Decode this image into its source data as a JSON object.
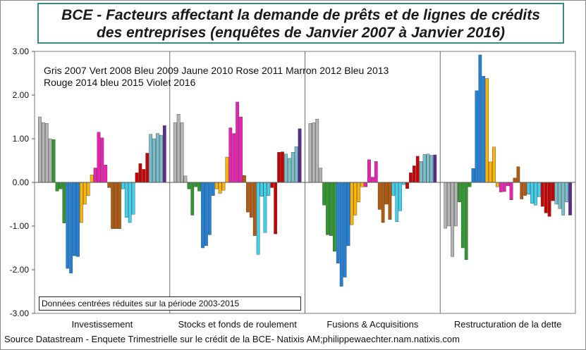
{
  "chart_data": {
    "type": "bar",
    "title_line1": "BCE - Facteurs affectant la demande de prêts et de lignes de crédits",
    "title_line2": "des entreprises (enquêtes de Janvier 2007 à Janvier 2016)",
    "legend_line1": "Gris 2007 Vert 2008 Bleu 2009 Jaune 2010 Rose 2011 Marron 2012 Bleu 2013",
    "legend_line2": "Rouge 2014 bleu 2015 Violet 2016",
    "note": "Données centrées réduites sur la période 2003-2015",
    "source": "Source Datastream - Enquete Trimestrielle sur le crédit de la BCE- Natixis AM;philippewaechter.nam.natixis.com",
    "ylim": [
      -3.0,
      3.0
    ],
    "yticks": [
      "3.00",
      "2.00",
      "1.00",
      "0.00",
      "-1.00",
      "-2.00",
      "-3.00"
    ],
    "ytick_values": [
      3,
      2,
      1,
      0,
      -1,
      -2,
      -3
    ],
    "categories": [
      "Investissement",
      "Stocks et fonds de roulement",
      "Fusions & Acquisitions",
      "Restructuration de la dette"
    ],
    "series": [
      {
        "name": "2007",
        "color": "#b4b4b4",
        "values": [
          [
            1.5,
            1.37,
            1.35,
            1.0
          ],
          [
            1.37,
            1.56,
            1.37,
            0.15
          ],
          [
            1.35,
            1.37,
            1.45,
            0.33
          ],
          [
            -1.05,
            -1.0,
            -1.7,
            -1.0
          ]
        ]
      },
      {
        "name": "2008",
        "color": "#2e9a2e",
        "values": [
          [
            0.98,
            -0.2,
            -0.15,
            -0.93
          ],
          [
            -0.15,
            -0.75,
            -0.1,
            -0.2
          ],
          [
            -0.52,
            -1.2,
            -1.22,
            -1.58
          ],
          [
            -0.45,
            -1.5,
            -1.77,
            -0.1
          ]
        ]
      },
      {
        "name": "2009",
        "color": "#1e82dc",
        "values": [
          [
            -1.97,
            -2.08,
            -1.68,
            -1.7
          ],
          [
            -1.5,
            -1.45,
            -1.2,
            -0.3
          ],
          [
            -1.85,
            -2.38,
            -2.17,
            -1.45
          ],
          [
            0.32,
            2.1,
            2.92,
            2.43
          ]
        ]
      },
      {
        "name": "2010",
        "color": "#ffb400",
        "values": [
          [
            -0.92,
            -0.5,
            -0.3,
            0.17
          ],
          [
            -0.15,
            -0.25,
            -0.18,
            0.58
          ],
          [
            -0.97,
            -0.75,
            -0.45,
            -0.1
          ],
          [
            2.38,
            0.47,
            0.81,
            -0.1
          ]
        ]
      },
      {
        "name": "2011",
        "color": "#f01eb4",
        "values": [
          [
            0.33,
            1.15,
            1.02,
            0.4
          ],
          [
            1.25,
            1.12,
            1.84,
            1.5
          ],
          [
            -0.1,
            0.52,
            0.12,
            0.48
          ],
          [
            -0.22,
            -0.21,
            -0.08,
            -0.4
          ]
        ]
      },
      {
        "name": "2012",
        "color": "#b45a0a",
        "values": [
          [
            -0.12,
            -1.06,
            -1.06,
            -1.06
          ],
          [
            0.16,
            -0.68,
            -0.8,
            -1.22
          ],
          [
            -0.62,
            -0.92,
            -0.5,
            -0.85
          ],
          [
            0.1,
            0.36,
            -0.38,
            -0.3
          ]
        ]
      },
      {
        "name": "2013",
        "color": "#3cd2f0",
        "values": [
          [
            -0.15,
            -0.8,
            -0.92,
            -0.73
          ],
          [
            -1.65,
            -0.32,
            -1.15,
            -0.3
          ],
          [
            -0.3,
            -0.9,
            -0.65,
            -0.05
          ],
          [
            -0.27,
            -0.48,
            -0.52,
            -0.33
          ]
        ]
      },
      {
        "name": "2014",
        "color": "#cc0000",
        "values": [
          [
            0.22,
            0.43,
            0.3,
            0.67
          ],
          [
            -0.12,
            -1.18,
            0.69,
            0.7
          ],
          [
            -0.14,
            0.22,
            0.38,
            0.6
          ],
          [
            -0.55,
            -0.7,
            -0.78,
            -0.42
          ]
        ]
      },
      {
        "name": "2015",
        "color": "#78c0cc",
        "values": [
          [
            1.1,
            1.0,
            1.12,
            1.08
          ],
          [
            0.65,
            0.55,
            0.69,
            0.82
          ],
          [
            0.48,
            0.64,
            0.65,
            0.62
          ],
          [
            -0.5,
            -0.6,
            -0.75,
            -0.45
          ]
        ]
      },
      {
        "name": "2016",
        "color": "#5a2a8c",
        "values": [
          [
            1.3
          ],
          [
            1.23
          ],
          [
            0.63
          ],
          [
            -0.75
          ]
        ]
      }
    ]
  }
}
